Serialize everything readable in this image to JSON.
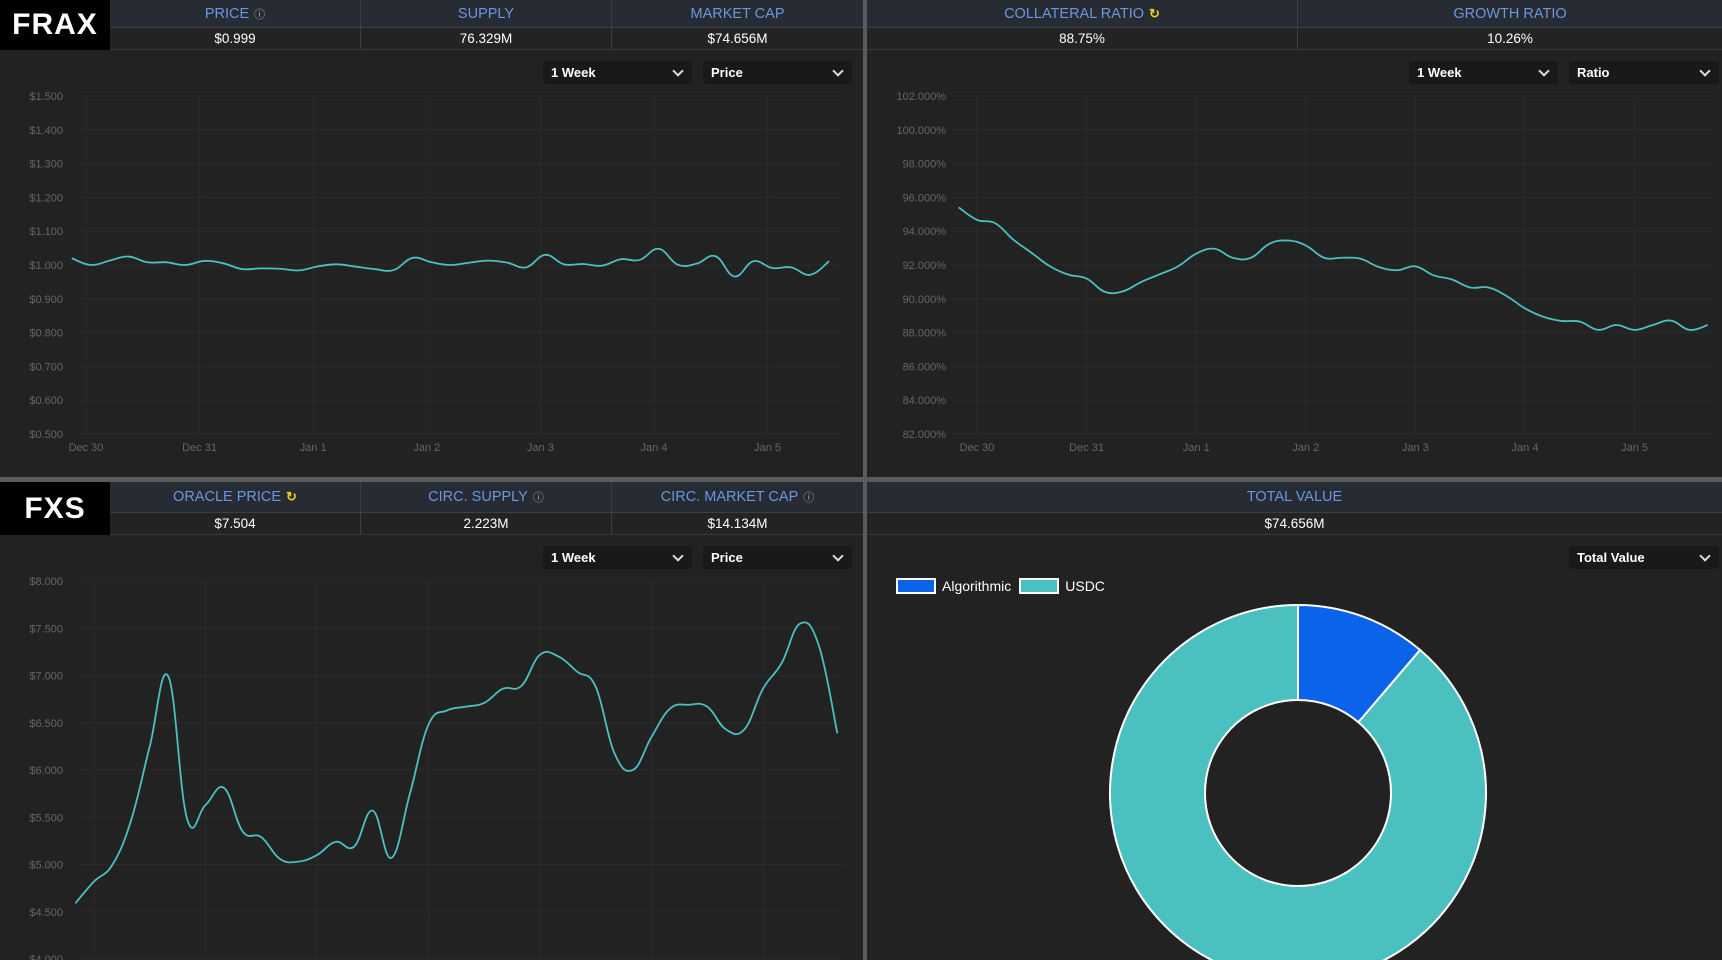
{
  "frax": {
    "logo": "FRAX",
    "stats": [
      {
        "label": "PRICE",
        "icon": "help-icon",
        "value": "$0.999"
      },
      {
        "label": "SUPPLY",
        "value": "76.329M"
      },
      {
        "label": "MARKET CAP",
        "value": "$74.656M"
      }
    ],
    "price_chart": {
      "period": "1 Week",
      "metric": "Price"
    },
    "ratio_stats": [
      {
        "label": "COLLATERAL RATIO",
        "icon": "refresh-icon",
        "value": "88.75%"
      },
      {
        "label": "GROWTH RATIO",
        "value": "10.26%"
      }
    ],
    "ratio_chart": {
      "period": "1 Week",
      "metric": "Ratio"
    }
  },
  "fxs": {
    "logo": "FXS",
    "stats": [
      {
        "label": "ORACLE PRICE",
        "icon": "refresh-icon",
        "value": "$7.504"
      },
      {
        "label": "CIRC. SUPPLY",
        "icon": "help-icon",
        "value": "2.223M"
      },
      {
        "label": "CIRC. MARKET CAP",
        "icon": "help-icon",
        "value": "$14.134M"
      }
    ],
    "price_chart": {
      "period": "1 Week",
      "metric": "Price"
    }
  },
  "total": {
    "label": "TOTAL VALUE",
    "value": "$74.656M",
    "metric": "Total Value"
  },
  "colors": {
    "line": "#4bc0c0",
    "algorithmic": "#0a63e8",
    "usdc": "#4bc0c0",
    "header_label": "#6b97de",
    "refresh": "#e8d31c"
  },
  "chart_data": [
    {
      "type": "line",
      "ylim": [
        0.5,
        1.5
      ],
      "yticks": [
        "$1.500",
        "$1.400",
        "$1.300",
        "$1.200",
        "$1.100",
        "$1.000",
        "$0.900",
        "$0.800",
        "$0.700",
        "$0.600",
        "$0.500"
      ],
      "xticks": [
        "Dec 30",
        "Dec 31",
        "Jan 1",
        "Jan 2",
        "Jan 3",
        "Jan 4",
        "Jan 5"
      ],
      "grid": true,
      "x": [
        "Dec 29 21:00",
        "Dec 30 01:00",
        "Dec 30 05:00",
        "Dec 30 09:00",
        "Dec 30 13:00",
        "Dec 30 17:00",
        "Dec 30 21:00",
        "Dec 31 01:00",
        "Dec 31 05:00",
        "Dec 31 09:00",
        "Dec 31 13:00",
        "Dec 31 17:00",
        "Dec 31 21:00",
        "Jan 1 01:00",
        "Jan 1 05:00",
        "Jan 1 09:00",
        "Jan 1 13:00",
        "Jan 1 17:00",
        "Jan 1 21:00",
        "Jan 2 01:00",
        "Jan 2 05:00",
        "Jan 2 09:00",
        "Jan 2 13:00",
        "Jan 2 17:00",
        "Jan 2 21:00",
        "Jan 3 01:00",
        "Jan 3 05:00",
        "Jan 3 09:00",
        "Jan 3 13:00",
        "Jan 3 17:00",
        "Jan 3 21:00",
        "Jan 4 01:00",
        "Jan 4 05:00",
        "Jan 4 09:00",
        "Jan 4 13:00",
        "Jan 4 17:00",
        "Jan 4 21:00",
        "Jan 5 01:00",
        "Jan 5 05:00",
        "Jan 5 09:00",
        "Jan 5 13:00"
      ],
      "y": [
        1.02,
        1.0,
        1.013,
        1.025,
        1.008,
        1.008,
        1.0,
        1.012,
        1.005,
        0.988,
        0.99,
        0.989,
        0.984,
        0.996,
        1.002,
        0.995,
        0.988,
        0.985,
        1.021,
        1.008,
        1.0,
        1.007,
        1.013,
        1.007,
        0.993,
        1.03,
        1.002,
        1.003,
        0.998,
        1.017,
        1.015,
        1.048,
        1.001,
        1.004,
        1.026,
        0.966,
        1.011,
        0.991,
        0.993,
        0.971,
        1.011
      ]
    },
    {
      "type": "line",
      "ylim": [
        82,
        102
      ],
      "yticks": [
        "102.000%",
        "100.000%",
        "98.000%",
        "96.000%",
        "94.000%",
        "92.000%",
        "90.000%",
        "88.000%",
        "86.000%",
        "84.000%",
        "82.000%"
      ],
      "xticks": [
        "Dec 30",
        "Dec 31",
        "Jan 1",
        "Jan 2",
        "Jan 3",
        "Jan 4",
        "Jan 5"
      ],
      "grid": true,
      "x": [
        "Dec 29 20:00",
        "Dec 30 00:00",
        "Dec 30 04:00",
        "Dec 30 08:00",
        "Dec 30 12:00",
        "Dec 30 16:00",
        "Dec 30 20:00",
        "Dec 31 00:00",
        "Dec 31 04:00",
        "Dec 31 08:00",
        "Dec 31 12:00",
        "Dec 31 16:00",
        "Dec 31 20:00",
        "Jan 1 00:00",
        "Jan 1 04:00",
        "Jan 1 08:00",
        "Jan 1 12:00",
        "Jan 1 16:00",
        "Jan 1 20:00",
        "Jan 2 00:00",
        "Jan 2 04:00",
        "Jan 2 08:00",
        "Jan 2 12:00",
        "Jan 2 16:00",
        "Jan 2 20:00",
        "Jan 3 00:00",
        "Jan 3 04:00",
        "Jan 3 08:00",
        "Jan 3 12:00",
        "Jan 3 16:00",
        "Jan 3 20:00",
        "Jan 4 00:00",
        "Jan 4 04:00",
        "Jan 4 08:00",
        "Jan 4 12:00",
        "Jan 4 16:00",
        "Jan 4 20:00",
        "Jan 5 00:00",
        "Jan 5 04:00",
        "Jan 5 08:00",
        "Jan 5 12:00",
        "Jan 5 16:00"
      ],
      "y": [
        95.41,
        94.67,
        94.47,
        93.49,
        92.71,
        91.92,
        91.43,
        91.2,
        90.41,
        90.45,
        91.0,
        91.45,
        91.92,
        92.67,
        92.96,
        92.43,
        92.43,
        93.25,
        93.45,
        93.16,
        92.43,
        92.43,
        92.37,
        91.88,
        91.69,
        91.92,
        91.39,
        91.14,
        90.67,
        90.67,
        90.16,
        89.43,
        88.94,
        88.69,
        88.65,
        88.16,
        88.45,
        88.16,
        88.45,
        88.71,
        88.16,
        88.45
      ]
    },
    {
      "type": "line",
      "ylim": [
        4.0,
        8.0
      ],
      "yticks": [
        "$8.000",
        "$7.500",
        "$7.000",
        "$6.500",
        "$6.000",
        "$5.500",
        "$5.000",
        "$4.500",
        "$4.000"
      ],
      "grid": true,
      "x": [
        "Dec 29 20:00",
        "Dec 30 00:00",
        "Dec 30 04:00",
        "Dec 30 08:00",
        "Dec 30 12:00",
        "Dec 30 16:00",
        "Dec 30 20:00",
        "Dec 31 00:00",
        "Dec 31 04:00",
        "Dec 31 08:00",
        "Dec 31 12:00",
        "Dec 31 16:00",
        "Dec 31 20:00",
        "Jan 1 00:00",
        "Jan 1 04:00",
        "Jan 1 08:00",
        "Jan 1 12:00",
        "Jan 1 16:00",
        "Jan 1 20:00",
        "Jan 2 00:00",
        "Jan 2 04:00",
        "Jan 2 08:00",
        "Jan 2 12:00",
        "Jan 2 16:00",
        "Jan 2 20:00",
        "Jan 3 00:00",
        "Jan 3 04:00",
        "Jan 3 08:00",
        "Jan 3 12:00",
        "Jan 3 16:00",
        "Jan 3 20:00",
        "Jan 4 00:00",
        "Jan 4 04:00",
        "Jan 4 08:00",
        "Jan 4 12:00",
        "Jan 4 16:00",
        "Jan 4 20:00",
        "Jan 5 00:00",
        "Jan 5 04:00",
        "Jan 5 08:00",
        "Jan 5 12:00",
        "Jan 5 16:00"
      ],
      "y": [
        4.59,
        4.82,
        5.0,
        5.47,
        6.25,
        6.99,
        5.49,
        5.63,
        5.81,
        5.35,
        5.29,
        5.06,
        5.03,
        5.1,
        5.24,
        5.19,
        5.57,
        5.07,
        5.75,
        6.48,
        6.63,
        6.67,
        6.71,
        6.86,
        6.89,
        7.22,
        7.2,
        7.04,
        6.88,
        6.18,
        6.0,
        6.35,
        6.65,
        6.69,
        6.67,
        6.43,
        6.43,
        6.86,
        7.13,
        7.55,
        7.32,
        6.39
      ]
    },
    {
      "type": "pie",
      "donut": true,
      "legend": "top-left",
      "categories": [
        "Algorithmic",
        "USDC"
      ],
      "values": [
        11.25,
        88.75
      ]
    }
  ]
}
